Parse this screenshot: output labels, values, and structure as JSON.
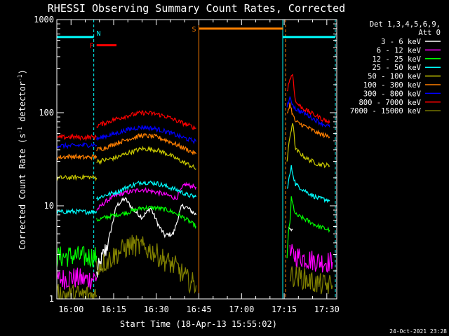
{
  "chart_data": {
    "type": "line",
    "title": "RHESSI Observing Summary Count Rates, Corrected",
    "xlabel": "Start Time (18-Apr-13 15:55:02)",
    "ylabel": "Corrected Count Rate (s⁻¹ detector⁻¹)",
    "ylabel_main": "Corrected Count Rate (s",
    "ylabel_exp": "-1",
    "ylabel_mid": " detector",
    "ylabel_exp2": "-1",
    "ylabel_end": ")",
    "x_ticks": [
      "16:00",
      "16:15",
      "16:30",
      "16:45",
      "17:00",
      "17:15",
      "17:30"
    ],
    "x_tick_minutes": [
      5,
      20,
      35,
      50,
      65,
      80,
      95
    ],
    "xlim_minutes": [
      0,
      98.5
    ],
    "y_scale": "log",
    "ylim": [
      1,
      1000
    ],
    "y_ticks": [
      "1",
      "10",
      "100",
      "1000"
    ],
    "legend_title": "Det 1,3,4,5,6,9,",
    "legend_subtitle": "Att 0",
    "legend_position": "right-outside",
    "series": [
      {
        "name": "3 - 6 keV",
        "color": "#ffffff",
        "segments": [
          {
            "x": [
              14,
              18,
              21,
              24,
              27,
              30,
              33,
              36,
              38,
              41,
              43,
              44,
              46,
              49
            ],
            "y": [
              1.8,
              4,
              10,
              12,
              9,
              7.5,
              9.5,
              6,
              4.8,
              5,
              8,
              10,
              9.5,
              8
            ]
          },
          {
            "x": [
              81.5,
              83
            ],
            "y": [
              6,
              5.5
            ]
          }
        ]
      },
      {
        "name": "6 - 12 keV",
        "color": "#ff00ff",
        "segments": [
          {
            "x": [
              0,
              5,
              10,
              14
            ],
            "y": [
              1.6,
              1.7,
              1.6,
              1.7
            ]
          },
          {
            "x": [
              14,
              17,
              21,
              25,
              30,
              35,
              39,
              42,
              45,
              49
            ],
            "y": [
              9,
              11,
              13,
              14,
              15,
              14,
              13,
              12,
              17,
              16
            ]
          },
          {
            "x": [
              82,
              86,
              90,
              94,
              97
            ],
            "y": [
              3,
              2.8,
              2.6,
              2.5,
              2.5
            ]
          }
        ]
      },
      {
        "name": "12 - 25 keV",
        "color": "#00ff00",
        "segments": [
          {
            "x": [
              0,
              5,
              10,
              14
            ],
            "y": [
              2.8,
              2.9,
              2.8,
              2.9
            ]
          },
          {
            "x": [
              14,
              17,
              21,
              25,
              30,
              35,
              39,
              43,
              46,
              49
            ],
            "y": [
              7,
              7.5,
              8,
              8.5,
              9.5,
              9.5,
              9,
              8,
              7,
              6
            ]
          },
          {
            "x": [
              81,
              82.5,
              84,
              88,
              92,
              96
            ],
            "y": [
              2.5,
              12,
              8,
              7,
              6,
              5.5
            ]
          }
        ]
      },
      {
        "name": "25 - 50 keV",
        "color": "#00ffff",
        "segments": [
          {
            "x": [
              0,
              5,
              10,
              14
            ],
            "y": [
              8.5,
              8.7,
              8.6,
              8.7
            ]
          },
          {
            "x": [
              14,
              17,
              21,
              25,
              30,
              35,
              39,
              43,
              46,
              49
            ],
            "y": [
              12,
              13,
              14,
              16,
              18,
              17.5,
              16,
              14.5,
              13,
              12.5
            ]
          },
          {
            "x": [
              81,
              82.5,
              84,
              88,
              92,
              96
            ],
            "y": [
              15,
              26,
              17,
              14,
              12,
              11.5
            ]
          }
        ]
      },
      {
        "name": "50 - 100 keV",
        "color": "#c8c800",
        "segments": [
          {
            "x": [
              0,
              5,
              10,
              14
            ],
            "y": [
              20,
              20,
              20.5,
              20
            ]
          },
          {
            "x": [
              14,
              17,
              21,
              25,
              30,
              35,
              39,
              43,
              46,
              49
            ],
            "y": [
              30,
              31,
              33,
              37,
              41,
              40,
              36,
              31,
              28,
              25
            ]
          },
          {
            "x": [
              81,
              82,
              83,
              84,
              88,
              92,
              96
            ],
            "y": [
              30,
              55,
              80,
              40,
              32,
              28,
              27
            ]
          }
        ]
      },
      {
        "name": "100 - 300 keV",
        "color": "#ff7f00",
        "segments": [
          {
            "x": [
              0,
              5,
              10,
              14
            ],
            "y": [
              33,
              34,
              33,
              34
            ]
          },
          {
            "x": [
              14,
              17,
              21,
              25,
              30,
              35,
              39,
              43,
              46,
              49
            ],
            "y": [
              40,
              42,
              47,
              52,
              57,
              55,
              50,
              44,
              40,
              36
            ]
          },
          {
            "x": [
              81,
              82,
              83,
              84,
              88,
              92,
              96
            ],
            "y": [
              95,
              125,
              95,
              80,
              70,
              60,
              55
            ]
          }
        ]
      },
      {
        "name": "300 - 800 keV",
        "color": "#0000ff",
        "segments": [
          {
            "x": [
              0,
              5,
              10,
              14
            ],
            "y": [
              44,
              44,
              45,
              45
            ]
          },
          {
            "x": [
              14,
              17,
              21,
              25,
              30,
              35,
              39,
              43,
              46,
              49
            ],
            "y": [
              52,
              56,
              60,
              66,
              70,
              67,
              62,
              56,
              52,
              49
            ]
          },
          {
            "x": [
              81,
              82,
              84,
              88,
              92,
              96
            ],
            "y": [
              120,
              140,
              110,
              95,
              80,
              70
            ]
          }
        ]
      },
      {
        "name": "800 - 7000 keV",
        "color": "#ff0000",
        "segments": [
          {
            "x": [
              0,
              5,
              10,
              14
            ],
            "y": [
              54,
              55,
              54,
              55
            ]
          },
          {
            "x": [
              14,
              17,
              21,
              25,
              30,
              35,
              39,
              43,
              46,
              49
            ],
            "y": [
              72,
              78,
              86,
              93,
              100,
              97,
              90,
              80,
              74,
              68
            ]
          },
          {
            "x": [
              81,
              82,
              83,
              84,
              86,
              88,
              92,
              96
            ],
            "y": [
              170,
              230,
              260,
              130,
              115,
              105,
              90,
              78
            ]
          }
        ]
      },
      {
        "name": "7000 - 15000 keV",
        "color": "#808000",
        "segments": [
          {
            "x": [
              0,
              5,
              10,
              14
            ],
            "y": [
              1.1,
              1.1,
              1.1,
              1.1
            ]
          },
          {
            "x": [
              14,
              18,
              22,
              26,
              30,
              34,
              38,
              42,
              46,
              49
            ],
            "y": [
              2.2,
              2.6,
              3.2,
              3.8,
              3.6,
              3.2,
              2.6,
              2.2,
              1.6,
              1.4
            ]
          },
          {
            "x": [
              82,
              86,
              90,
              94,
              97
            ],
            "y": [
              1.8,
              1.7,
              1.5,
              1.4,
              1.4
            ]
          }
        ]
      }
    ],
    "flags": [
      {
        "label": "N",
        "color": "#00ffff",
        "segments": [
          [
            0,
            13
          ],
          [
            79.5,
            98
          ]
        ],
        "y": 650
      },
      {
        "label": "F",
        "color": "#ff0000",
        "segments": [
          [
            14,
            21
          ]
        ],
        "y": 530
      },
      {
        "label": "S",
        "color": "#ff7f00",
        "segments": [
          [
            50,
            79.5
          ]
        ],
        "y": 800
      }
    ],
    "vlines": [
      {
        "x": 13,
        "color": "#00ffff",
        "dash": true
      },
      {
        "x": 50,
        "color": "#ff7f00",
        "dash": false
      },
      {
        "x": 79.5,
        "color": "#00ffff",
        "dash": false
      },
      {
        "x": 80.5,
        "color": "#ff7f00",
        "dash": true
      },
      {
        "x": 98,
        "color": "#00ffff",
        "dash": true
      }
    ]
  },
  "footer_timestamp": "24-Oct-2021 23:28"
}
